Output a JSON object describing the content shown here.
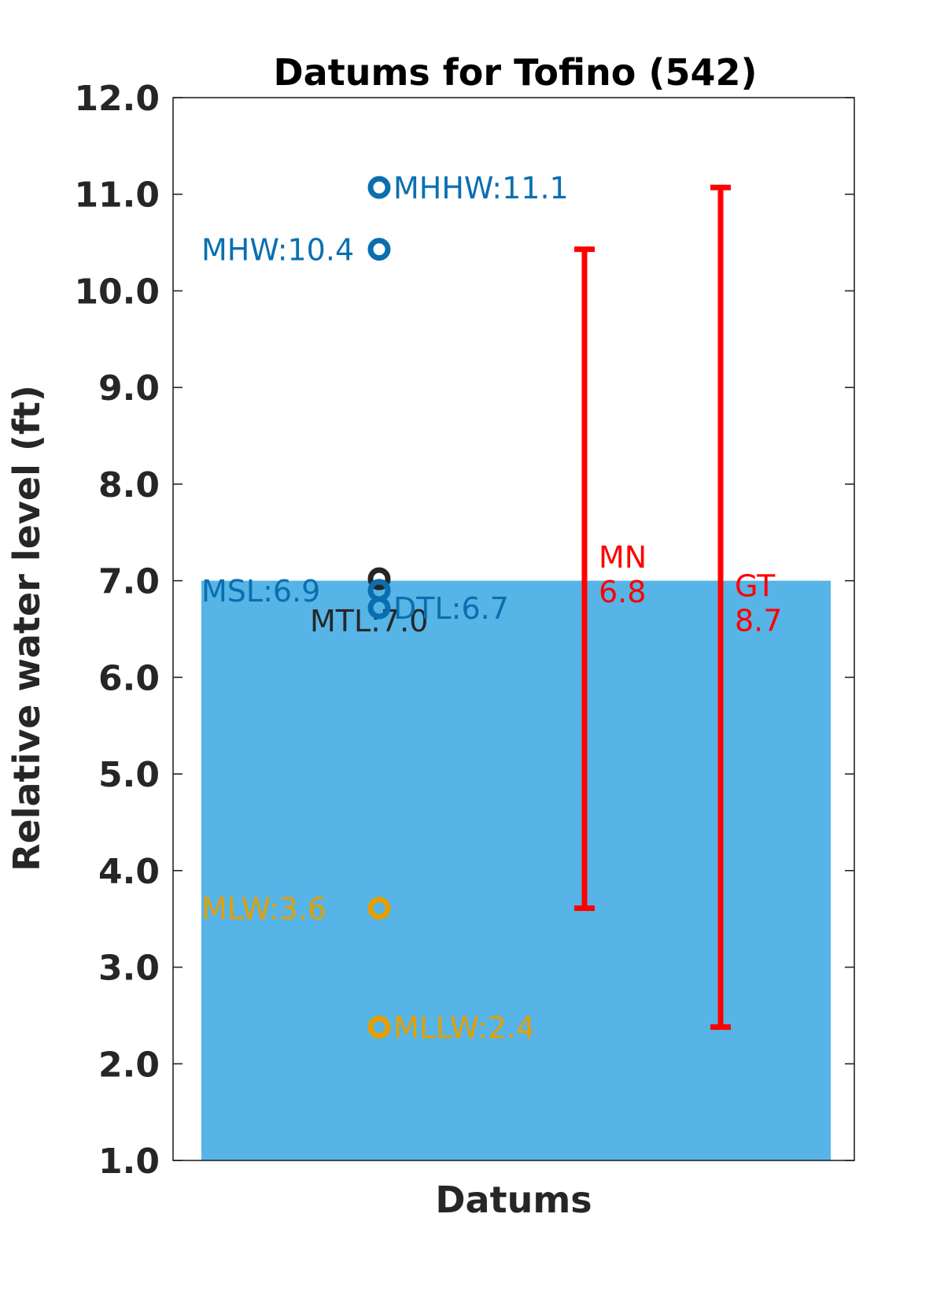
{
  "chart_data": {
    "type": "scatter",
    "title": "Datums for Tofino (542)",
    "xlabel": "Datums",
    "ylabel": "Relative water level (ft)",
    "ylim": [
      1.0,
      12.0
    ],
    "yticks": [
      "1.0",
      "2.0",
      "3.0",
      "4.0",
      "5.0",
      "6.0",
      "7.0",
      "8.0",
      "9.0",
      "10.0",
      "11.0",
      "12.0"
    ],
    "grid": false,
    "background_bar": {
      "value": 7.0,
      "color": "#56b4e6"
    },
    "points": [
      {
        "label": "MHHW:11.1",
        "value": 11.07,
        "color": "#0a6fb0",
        "label_side": "right"
      },
      {
        "label": "MHW:10.4",
        "value": 10.43,
        "color": "#0a6fb0",
        "label_side": "left"
      },
      {
        "label": "MTL:7.0",
        "value": 7.02,
        "color": "#262626",
        "label_side": "below"
      },
      {
        "label": "MSL:6.9",
        "value": 6.9,
        "color": "#0a6fb0",
        "label_side": "left"
      },
      {
        "label": "DTL:6.7",
        "value": 6.72,
        "color": "#0a6fb0",
        "label_side": "right"
      },
      {
        "label": "MLW:3.6",
        "value": 3.61,
        "color": "#e69f00",
        "label_side": "left"
      },
      {
        "label": "MLLW:2.4",
        "value": 2.38,
        "color": "#e69f00",
        "label_side": "right"
      }
    ],
    "ranges": [
      {
        "name": "MN",
        "value_label": "6.8",
        "low": 3.61,
        "high": 10.43,
        "color": "#ff0000"
      },
      {
        "name": "GT",
        "value_label": "8.7",
        "low": 2.38,
        "high": 11.07,
        "color": "#ff0000"
      }
    ]
  }
}
